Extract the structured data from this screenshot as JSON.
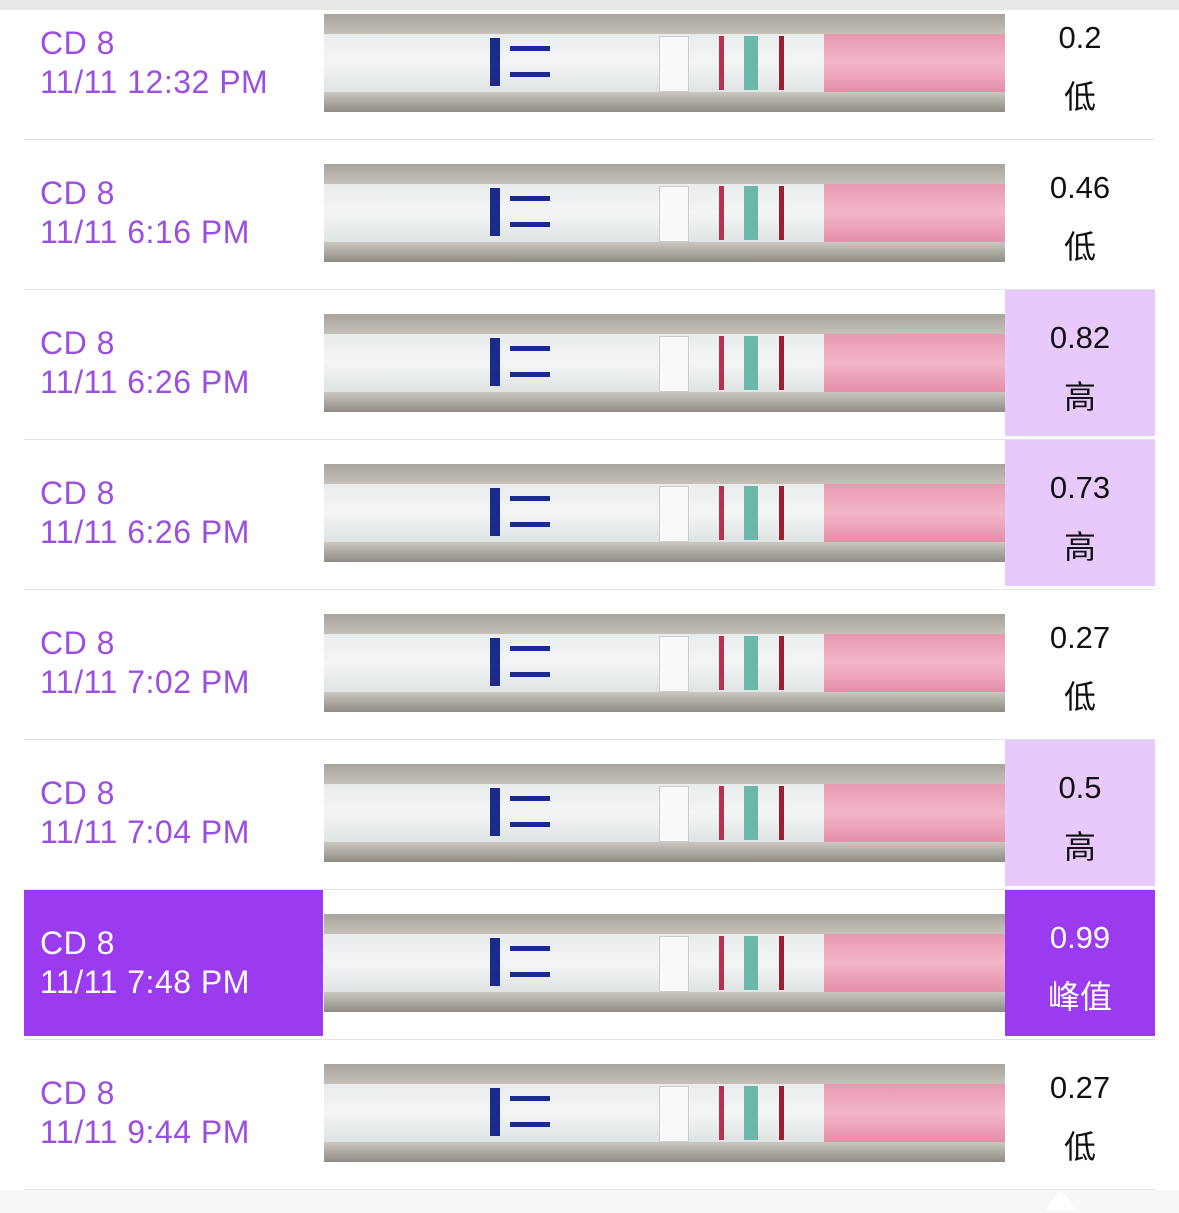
{
  "rows": [
    {
      "cycle_day": "CD 8",
      "time": "11/11 12:32 PM",
      "value": "0.2",
      "level": "低"
    },
    {
      "cycle_day": "CD 8",
      "time": "11/11 6:16 PM",
      "value": "0.46",
      "level": "低"
    },
    {
      "cycle_day": "CD 8",
      "time": "11/11 6:26 PM",
      "value": "0.82",
      "level": "高",
      "value_bg": "#e8c9fc"
    },
    {
      "cycle_day": "CD 8",
      "time": "11/11 6:26 PM",
      "value": "0.73",
      "level": "高",
      "value_bg": "#e8c9fc"
    },
    {
      "cycle_day": "CD 8",
      "time": "11/11 7:02 PM",
      "value": "0.27",
      "level": "低"
    },
    {
      "cycle_day": "CD 8",
      "time": "11/11 7:04 PM",
      "value": "0.5",
      "level": "高",
      "value_bg": "#e8c9fc"
    },
    {
      "cycle_day": "CD 8",
      "time": "11/11 7:48 PM",
      "value": "0.99",
      "level": "峰值",
      "value_bg": "#9a3bef",
      "label_bg": "#9a3bef"
    },
    {
      "cycle_day": "CD 8",
      "time": "11/11 9:44 PM",
      "value": "0.27",
      "level": "低"
    }
  ]
}
